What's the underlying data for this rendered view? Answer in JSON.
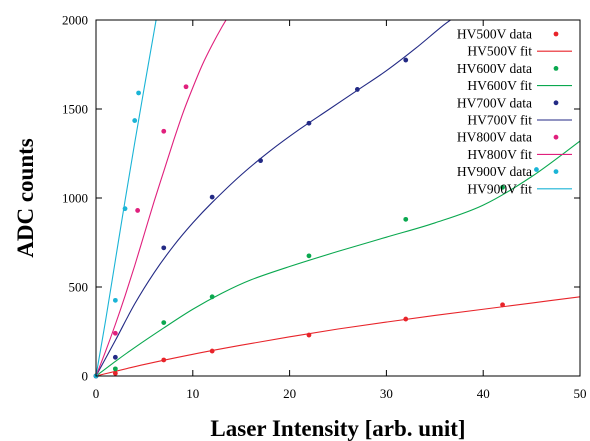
{
  "chart_data": {
    "type": "scatter",
    "xlabel": "Laser Intensity [arb. unit]",
    "ylabel": "ADC counts",
    "xlim": [
      0,
      50
    ],
    "ylim": [
      0,
      2000
    ],
    "xticks": [
      "0",
      "10",
      "20",
      "30",
      "40",
      "50"
    ],
    "yticks": [
      "0",
      "500",
      "1000",
      "1500",
      "2000"
    ],
    "grid": false,
    "legend_position": "top-right",
    "series": [
      {
        "name": "HV500V",
        "data_label": "HV500V data",
        "fit_label": "HV500V fit",
        "color": "#e8242a",
        "points": [
          [
            0,
            0
          ],
          [
            2,
            15
          ],
          [
            7,
            90
          ],
          [
            12,
            140
          ],
          [
            22,
            230
          ],
          [
            32,
            320
          ],
          [
            42,
            400
          ]
        ],
        "fit": [
          [
            0,
            0
          ],
          [
            5,
            65
          ],
          [
            10,
            122
          ],
          [
            15,
            173
          ],
          [
            20,
            220
          ],
          [
            25,
            264
          ],
          [
            30,
            303
          ],
          [
            35,
            340
          ],
          [
            40,
            375
          ],
          [
            45,
            410
          ],
          [
            50,
            445
          ]
        ]
      },
      {
        "name": "HV600V",
        "data_label": "HV600V data",
        "fit_label": "HV600V fit",
        "color": "#0aa84f",
        "points": [
          [
            0,
            0
          ],
          [
            2,
            40
          ],
          [
            7,
            300
          ],
          [
            12,
            445
          ],
          [
            22,
            675
          ],
          [
            32,
            880
          ],
          [
            42,
            1060
          ]
        ],
        "fit": [
          [
            0,
            0
          ],
          [
            2,
            82
          ],
          [
            4,
            160
          ],
          [
            7,
            270
          ],
          [
            10,
            375
          ],
          [
            13,
            465
          ],
          [
            16,
            540
          ],
          [
            20,
            615
          ],
          [
            25,
            700
          ],
          [
            30,
            780
          ],
          [
            35,
            860
          ],
          [
            40,
            960
          ],
          [
            45,
            1120
          ],
          [
            50,
            1320
          ]
        ]
      },
      {
        "name": "HV700V",
        "data_label": "HV700V data",
        "fit_label": "HV700V fit",
        "color": "#232a85",
        "points": [
          [
            0,
            0
          ],
          [
            2,
            105
          ],
          [
            7,
            720
          ],
          [
            12,
            1005
          ],
          [
            17,
            1210
          ],
          [
            22,
            1420
          ],
          [
            27,
            1610
          ],
          [
            32,
            1775
          ]
        ],
        "fit": [
          [
            0,
            0
          ],
          [
            2,
            200
          ],
          [
            4,
            405
          ],
          [
            6,
            580
          ],
          [
            8,
            730
          ],
          [
            10,
            860
          ],
          [
            12,
            975
          ],
          [
            15,
            1130
          ],
          [
            18,
            1265
          ],
          [
            21,
            1385
          ],
          [
            24,
            1495
          ],
          [
            27,
            1605
          ],
          [
            30,
            1715
          ],
          [
            33,
            1840
          ],
          [
            36,
            1975
          ],
          [
            38,
            2050
          ]
        ]
      },
      {
        "name": "HV800V",
        "data_label": "HV800V data",
        "fit_label": "HV800V fit",
        "color": "#e0207d",
        "points": [
          [
            0,
            0
          ],
          [
            2,
            240
          ],
          [
            4.3,
            930
          ],
          [
            7,
            1375
          ],
          [
            9.3,
            1625
          ]
        ],
        "fit": [
          [
            0,
            0
          ],
          [
            1,
            140
          ],
          [
            2,
            290
          ],
          [
            3,
            450
          ],
          [
            4,
            620
          ],
          [
            5,
            800
          ],
          [
            6,
            980
          ],
          [
            7,
            1150
          ],
          [
            8,
            1320
          ],
          [
            9,
            1480
          ],
          [
            10,
            1620
          ],
          [
            11,
            1750
          ],
          [
            12,
            1860
          ],
          [
            13,
            1960
          ],
          [
            14,
            2050
          ]
        ]
      },
      {
        "name": "HV900V",
        "data_label": "HV900V data",
        "fit_label": "HV900V fit",
        "color": "#1ab4d6",
        "points": [
          [
            0,
            0
          ],
          [
            2,
            425
          ],
          [
            3,
            940
          ],
          [
            4,
            1435
          ],
          [
            4.4,
            1590
          ],
          [
            45.5,
            1160
          ]
        ],
        "fit": [
          [
            0,
            0
          ],
          [
            1,
            315
          ],
          [
            2,
            650
          ],
          [
            3,
            985
          ],
          [
            4,
            1310
          ],
          [
            5,
            1625
          ],
          [
            6,
            1935
          ],
          [
            6.4,
            2060
          ]
        ]
      }
    ]
  }
}
